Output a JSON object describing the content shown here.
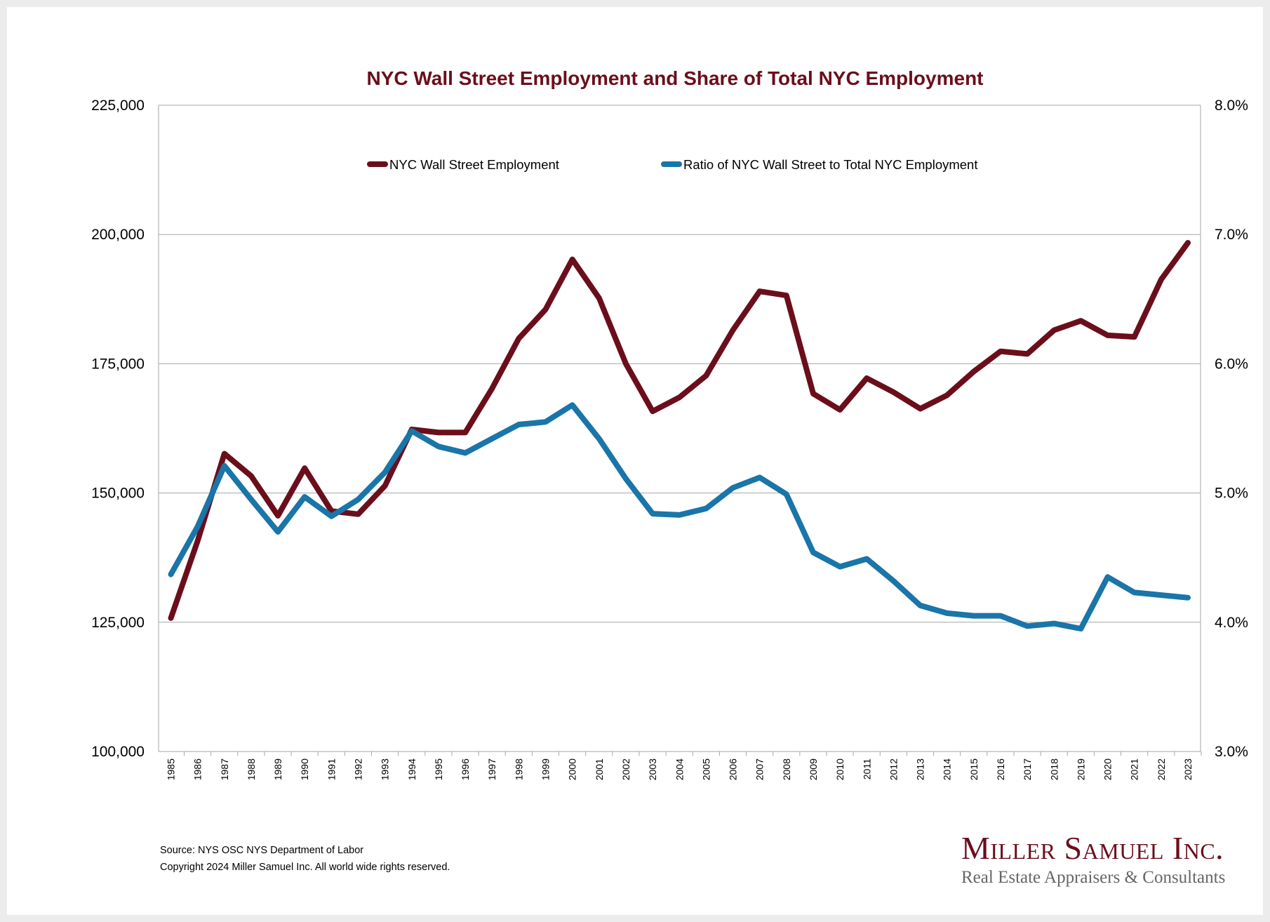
{
  "chart_data": {
    "type": "line",
    "title": "NYC Wall Street Employment and Share of Total NYC Employment",
    "x": [
      1985,
      1986,
      1987,
      1988,
      1989,
      1990,
      1991,
      1992,
      1993,
      1994,
      1995,
      1996,
      1997,
      1998,
      1999,
      2000,
      2001,
      2002,
      2003,
      2004,
      2005,
      2006,
      2007,
      2008,
      2009,
      2010,
      2011,
      2012,
      2013,
      2014,
      2015,
      2016,
      2017,
      2018,
      2019,
      2020,
      2021,
      2022,
      2023
    ],
    "y_left": {
      "ylim": [
        100000,
        225000
      ],
      "ticks": [
        100000,
        125000,
        150000,
        175000,
        200000,
        225000
      ],
      "tick_labels": [
        "100,000",
        "125,000",
        "150,000",
        "175,000",
        "200,000",
        "225,000"
      ]
    },
    "y_right": {
      "ylim": [
        3.0,
        8.0
      ],
      "ticks": [
        3,
        4,
        5,
        6,
        7,
        8
      ],
      "tick_labels": [
        "3.0%",
        "4.0%",
        "5.0%",
        "6.0%",
        "7.0%",
        "8.0%"
      ]
    },
    "grid": true,
    "legend_placement": "top-center",
    "series": [
      {
        "name": "NYC Wall Street Employment",
        "axis": "left",
        "color": "#6b0e1b",
        "values": [
          125800,
          140700,
          157600,
          153300,
          145600,
          154800,
          146500,
          145900,
          151400,
          162300,
          161700,
          161700,
          170200,
          179900,
          185500,
          195200,
          187700,
          175000,
          165800,
          168500,
          172700,
          181500,
          189000,
          188200,
          169200,
          166100,
          172200,
          169500,
          166300,
          168900,
          173500,
          177400,
          176900,
          181500,
          183300,
          180500,
          180200,
          191300,
          198400
        ]
      },
      {
        "name": "Ratio of NYC Wall Street to Total NYC Employment",
        "axis": "right",
        "color": "#1a75a8",
        "values": [
          4.37,
          4.74,
          5.21,
          4.95,
          4.7,
          4.97,
          4.82,
          4.95,
          5.16,
          5.48,
          5.36,
          5.31,
          5.42,
          5.53,
          5.55,
          5.68,
          5.42,
          5.11,
          4.84,
          4.83,
          4.88,
          5.04,
          5.12,
          4.99,
          4.54,
          4.43,
          4.49,
          4.32,
          4.13,
          4.07,
          4.05,
          4.05,
          3.97,
          3.99,
          3.95,
          4.35,
          4.23,
          4.21,
          4.19
        ]
      }
    ]
  },
  "footer": {
    "source": "Source: NYS OSC NYS Department of Labor",
    "copyright": "Copyright 2024 Miller Samuel Inc.  All world wide rights reserved."
  },
  "logo": {
    "name": "Miller Samuel Inc.",
    "tagline": "Real Estate Appraisers & Consultants"
  }
}
